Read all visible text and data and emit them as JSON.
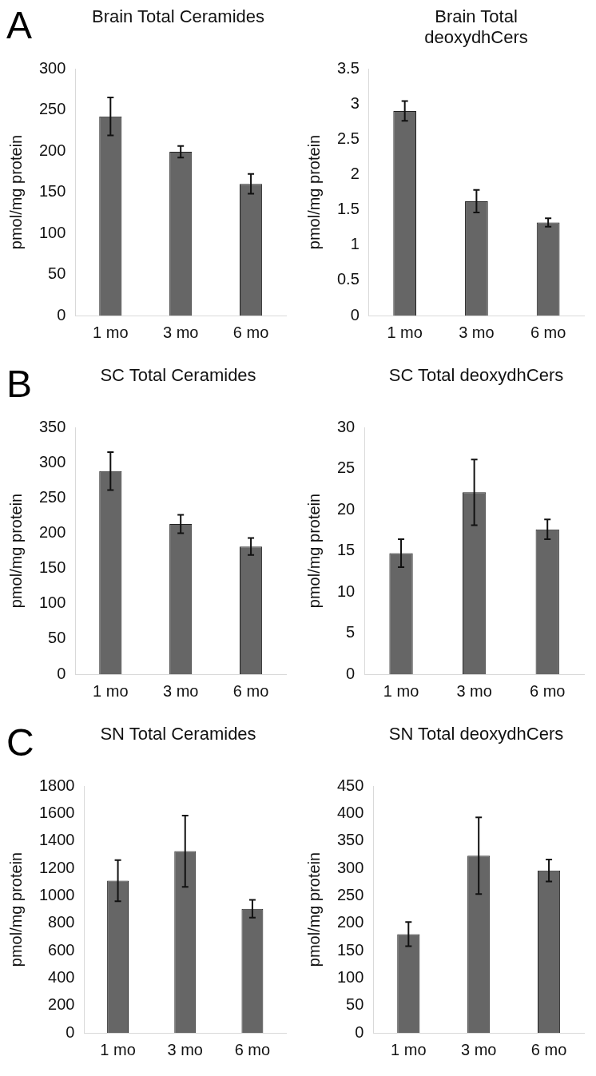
{
  "chart_data": [
    {
      "type": "bar",
      "title": "Brain Total Ceramides",
      "ylabel": "pmol/mg protein",
      "categories": [
        "1 mo",
        "3 mo",
        "6 mo"
      ],
      "values": [
        242,
        199,
        160
      ],
      "errors": [
        23,
        7,
        12
      ],
      "color": "#666666",
      "ylim": [
        0,
        300
      ],
      "yticks": [
        0,
        50,
        100,
        150,
        200,
        250,
        300
      ],
      "grid": false,
      "annotations": [
        "A"
      ]
    },
    {
      "type": "bar",
      "title": "Brain Total deoxydhCers",
      "ylabel": "pmol/mg protein",
      "categories": [
        "1 mo",
        "3 mo",
        "6 mo"
      ],
      "values": [
        2.9,
        1.62,
        1.32
      ],
      "errors": [
        0.14,
        0.16,
        0.06
      ],
      "color": "#666666",
      "ylim": [
        0,
        3.5
      ],
      "yticks": [
        0,
        0.5,
        1,
        1.5,
        2,
        2.5,
        3,
        3.5
      ],
      "grid": false
    },
    {
      "type": "bar",
      "title": "SC Total Ceramides",
      "ylabel": "pmol/mg protein",
      "categories": [
        "1 mo",
        "3 mo",
        "6 mo"
      ],
      "values": [
        288,
        213,
        181
      ],
      "errors": [
        27,
        13,
        12
      ],
      "color": "#666666",
      "ylim": [
        0,
        350
      ],
      "yticks": [
        0,
        50,
        100,
        150,
        200,
        250,
        300,
        350
      ],
      "grid": false,
      "annotations": [
        "B"
      ]
    },
    {
      "type": "bar",
      "title": "SC Total deoxydhCers",
      "ylabel": "pmol/mg protein",
      "categories": [
        "1 mo",
        "3 mo",
        "6 mo"
      ],
      "values": [
        14.7,
        22.1,
        17.6
      ],
      "errors": [
        1.7,
        4,
        1.2
      ],
      "color": "#666666",
      "ylim": [
        0,
        30
      ],
      "yticks": [
        0,
        5,
        10,
        15,
        20,
        25,
        30
      ],
      "grid": false
    },
    {
      "type": "bar",
      "title": "SN Total Ceramides",
      "ylabel": "pmol/mg protein",
      "categories": [
        "1 mo",
        "3 mo",
        "6 mo"
      ],
      "values": [
        1110,
        1325,
        905
      ],
      "errors": [
        150,
        260,
        65
      ],
      "color": "#666666",
      "ylim": [
        0,
        1800
      ],
      "yticks": [
        0,
        200,
        400,
        600,
        800,
        1000,
        1200,
        1400,
        1600,
        1800
      ],
      "grid": false,
      "annotations": [
        "C"
      ]
    },
    {
      "type": "bar",
      "title": "SN Total deoxydhCers",
      "ylabel": "pmol/mg protein",
      "categories": [
        "1 mo",
        "3 mo",
        "6 mo"
      ],
      "values": [
        180,
        323,
        296
      ],
      "errors": [
        22,
        70,
        20
      ],
      "color": "#666666",
      "ylim": [
        0,
        450
      ],
      "yticks": [
        0,
        50,
        100,
        150,
        200,
        250,
        300,
        350,
        400,
        450
      ],
      "grid": false
    }
  ]
}
